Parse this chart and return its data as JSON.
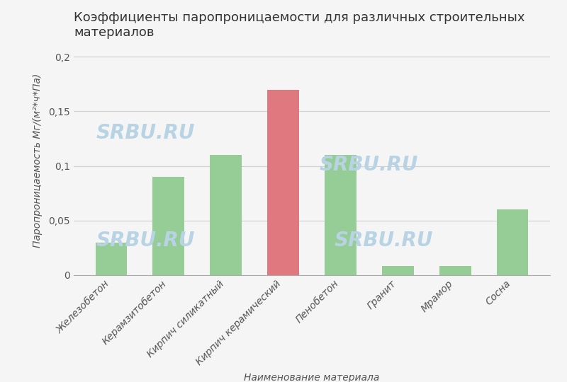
{
  "title": "Коэффициенты паропроницаемости для различных строительных\nматериалов",
  "xlabel": "Наименование материала",
  "ylabel": "Паропроницаемость Мг/(м²·ч·Па)",
  "ylabel_display": "Паропроницаемость Мг/(м²*ч*Па)",
  "categories": [
    "Железобетон",
    "Керамзитобетон",
    "Кирпич силикатный",
    "Кирпич керамический",
    "Пенобетон",
    "Гранит",
    "Мрамор",
    "Сосна"
  ],
  "values": [
    0.03,
    0.09,
    0.11,
    0.17,
    0.11,
    0.008,
    0.008,
    0.06
  ],
  "bar_colors": [
    "#96cc96",
    "#96cc96",
    "#96cc96",
    "#e07880",
    "#96cc96",
    "#96cc96",
    "#96cc96",
    "#96cc96"
  ],
  "ylim": [
    0,
    0.21
  ],
  "yticks": [
    0,
    0.05,
    0.1,
    0.15,
    0.2
  ],
  "ytick_labels": [
    "0",
    "0,05",
    "0,1",
    "0,15",
    "0,2"
  ],
  "background_color": "#f5f5f5",
  "plot_bg_color": "#f5f5f5",
  "grid_color": "#d0d0d0",
  "watermark_text": "SRBU.RU",
  "watermark_color": "#b8d4e4",
  "title_fontsize": 13,
  "axis_label_fontsize": 10,
  "tick_fontsize": 10,
  "bar_width": 0.55
}
